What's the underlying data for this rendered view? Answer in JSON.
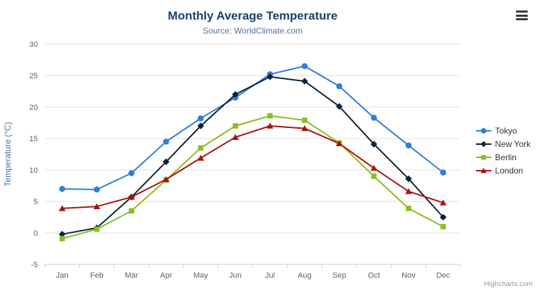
{
  "credit": "Highcharts.com",
  "chart_data": {
    "type": "line",
    "title": "Monthly Average Temperature",
    "subtitle": "Source: WorldClimate.com",
    "xlabel": "",
    "ylabel": "Temperature (°C)",
    "ylim": [
      -5,
      30
    ],
    "ytick_step": 5,
    "grid": true,
    "legend_position": "right",
    "categories": [
      "Jan",
      "Feb",
      "Mar",
      "Apr",
      "May",
      "Jun",
      "Jul",
      "Aug",
      "Sep",
      "Oct",
      "Nov",
      "Dec"
    ],
    "series": [
      {
        "name": "Tokyo",
        "color": "#2f7ed8",
        "marker": "circle",
        "values": [
          7.0,
          6.9,
          9.5,
          14.5,
          18.2,
          21.5,
          25.2,
          26.5,
          23.3,
          18.3,
          13.9,
          9.6
        ]
      },
      {
        "name": "New York",
        "color": "#0d233a",
        "marker": "diamond",
        "values": [
          -0.2,
          0.8,
          5.7,
          11.3,
          17.0,
          22.0,
          24.8,
          24.1,
          20.1,
          14.1,
          8.6,
          2.5
        ]
      },
      {
        "name": "Berlin",
        "color": "#8bbc21",
        "marker": "square",
        "values": [
          -0.9,
          0.6,
          3.5,
          8.4,
          13.5,
          17.0,
          18.6,
          17.9,
          14.3,
          9.0,
          3.9,
          1.0
        ]
      },
      {
        "name": "London",
        "color": "#aa1111",
        "marker": "triangle",
        "values": [
          3.9,
          4.2,
          5.7,
          8.5,
          11.9,
          15.2,
          17.0,
          16.6,
          14.2,
          10.3,
          6.6,
          4.8
        ]
      }
    ]
  }
}
